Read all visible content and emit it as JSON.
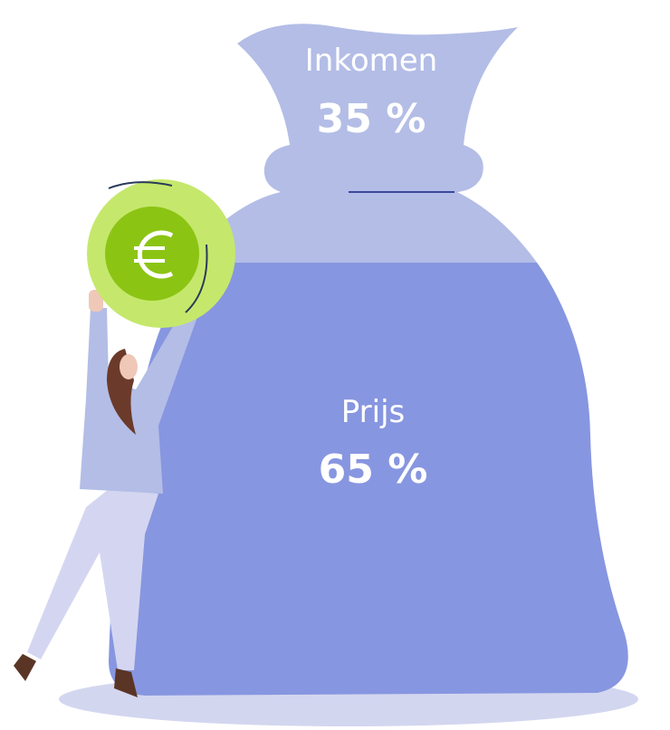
{
  "segments": [
    {
      "label": "Inkomen",
      "value": "35 %"
    },
    {
      "label": "Prijs",
      "value": "65 %"
    }
  ]
}
